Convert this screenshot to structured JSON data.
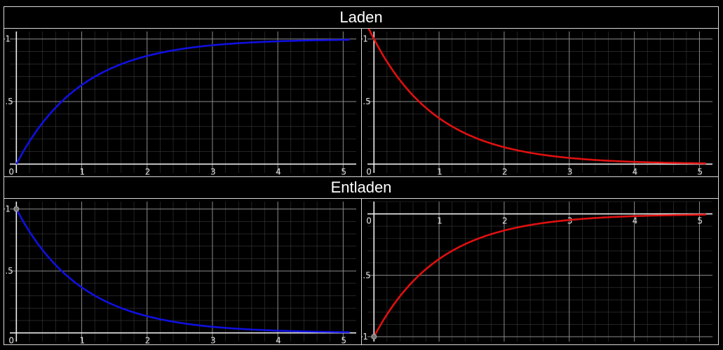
{
  "sections": [
    {
      "title": "Laden"
    },
    {
      "title": "Entladen"
    }
  ],
  "chart_data": [
    {
      "type": "line",
      "function": "1 - exp(-x)",
      "x": [
        0,
        0.25,
        0.5,
        0.75,
        1,
        1.5,
        2,
        2.5,
        3,
        3.5,
        4,
        4.5,
        5,
        5.1
      ],
      "values": [
        0,
        0.221,
        0.393,
        0.528,
        0.632,
        0.777,
        0.865,
        0.918,
        0.95,
        0.97,
        0.982,
        0.989,
        0.993,
        0.994
      ],
      "color": "#1010e0",
      "xlim": [
        -0.1,
        5.2
      ],
      "ylim": [
        -0.07,
        1.06
      ],
      "xticks": [
        "0",
        "1",
        "2",
        "3",
        "4",
        "5"
      ],
      "yticks": [
        "",
        ".5",
        "1"
      ],
      "yticks_values": [
        0,
        0.5,
        1
      ],
      "grid": true
    },
    {
      "type": "line",
      "function": "exp(-x)",
      "x": [
        -0.1,
        0,
        0.25,
        0.5,
        0.75,
        1,
        1.5,
        2,
        2.5,
        3,
        3.5,
        4,
        4.5,
        5,
        5.1
      ],
      "values": [
        1.105,
        1,
        0.779,
        0.607,
        0.472,
        0.368,
        0.223,
        0.135,
        0.082,
        0.05,
        0.03,
        0.018,
        0.011,
        0.007,
        0.006
      ],
      "color": "#e01010",
      "xlim": [
        -0.1,
        5.2
      ],
      "ylim": [
        -0.07,
        1.06
      ],
      "xticks": [
        "0",
        "1",
        "2",
        "3",
        "4",
        "5"
      ],
      "yticks": [
        "",
        ".5",
        "1"
      ],
      "yticks_values": [
        0,
        0.5,
        1
      ],
      "grid": true
    },
    {
      "type": "line",
      "function": "exp(-x)",
      "x": [
        0,
        0.25,
        0.5,
        0.75,
        1,
        1.5,
        2,
        2.5,
        3,
        3.5,
        4,
        4.5,
        5,
        5.1
      ],
      "values": [
        1,
        0.779,
        0.607,
        0.472,
        0.368,
        0.223,
        0.135,
        0.082,
        0.05,
        0.03,
        0.018,
        0.011,
        0.007,
        0.006
      ],
      "color": "#1010e0",
      "xlim": [
        -0.1,
        5.2
      ],
      "ylim": [
        -0.07,
        1.06
      ],
      "xticks": [
        "0",
        "1",
        "2",
        "3",
        "4",
        "5"
      ],
      "yticks": [
        "",
        ".5",
        "1"
      ],
      "yticks_values": [
        0,
        0.5,
        1
      ],
      "marker_point": [
        0,
        1
      ],
      "grid": true
    },
    {
      "type": "line",
      "function": "-exp(-x)",
      "x": [
        0,
        0.25,
        0.5,
        0.75,
        1,
        1.5,
        2,
        2.5,
        3,
        3.5,
        4,
        4.5,
        5,
        5.1
      ],
      "values": [
        -1,
        -0.779,
        -0.607,
        -0.472,
        -0.368,
        -0.223,
        -0.135,
        -0.082,
        -0.05,
        -0.03,
        -0.018,
        -0.011,
        -0.007,
        -0.006
      ],
      "color": "#e01010",
      "xlim": [
        -0.1,
        5.2
      ],
      "ylim": [
        -1.04,
        0.1
      ],
      "xticks": [
        "0",
        "1",
        "2",
        "3",
        "4",
        "5"
      ],
      "yticks": [
        "1",
        ".5",
        "0"
      ],
      "yticks_values": [
        -1,
        -0.5,
        0
      ],
      "xtick_position": "top",
      "marker_point": [
        0,
        -1
      ],
      "grid": true
    }
  ]
}
